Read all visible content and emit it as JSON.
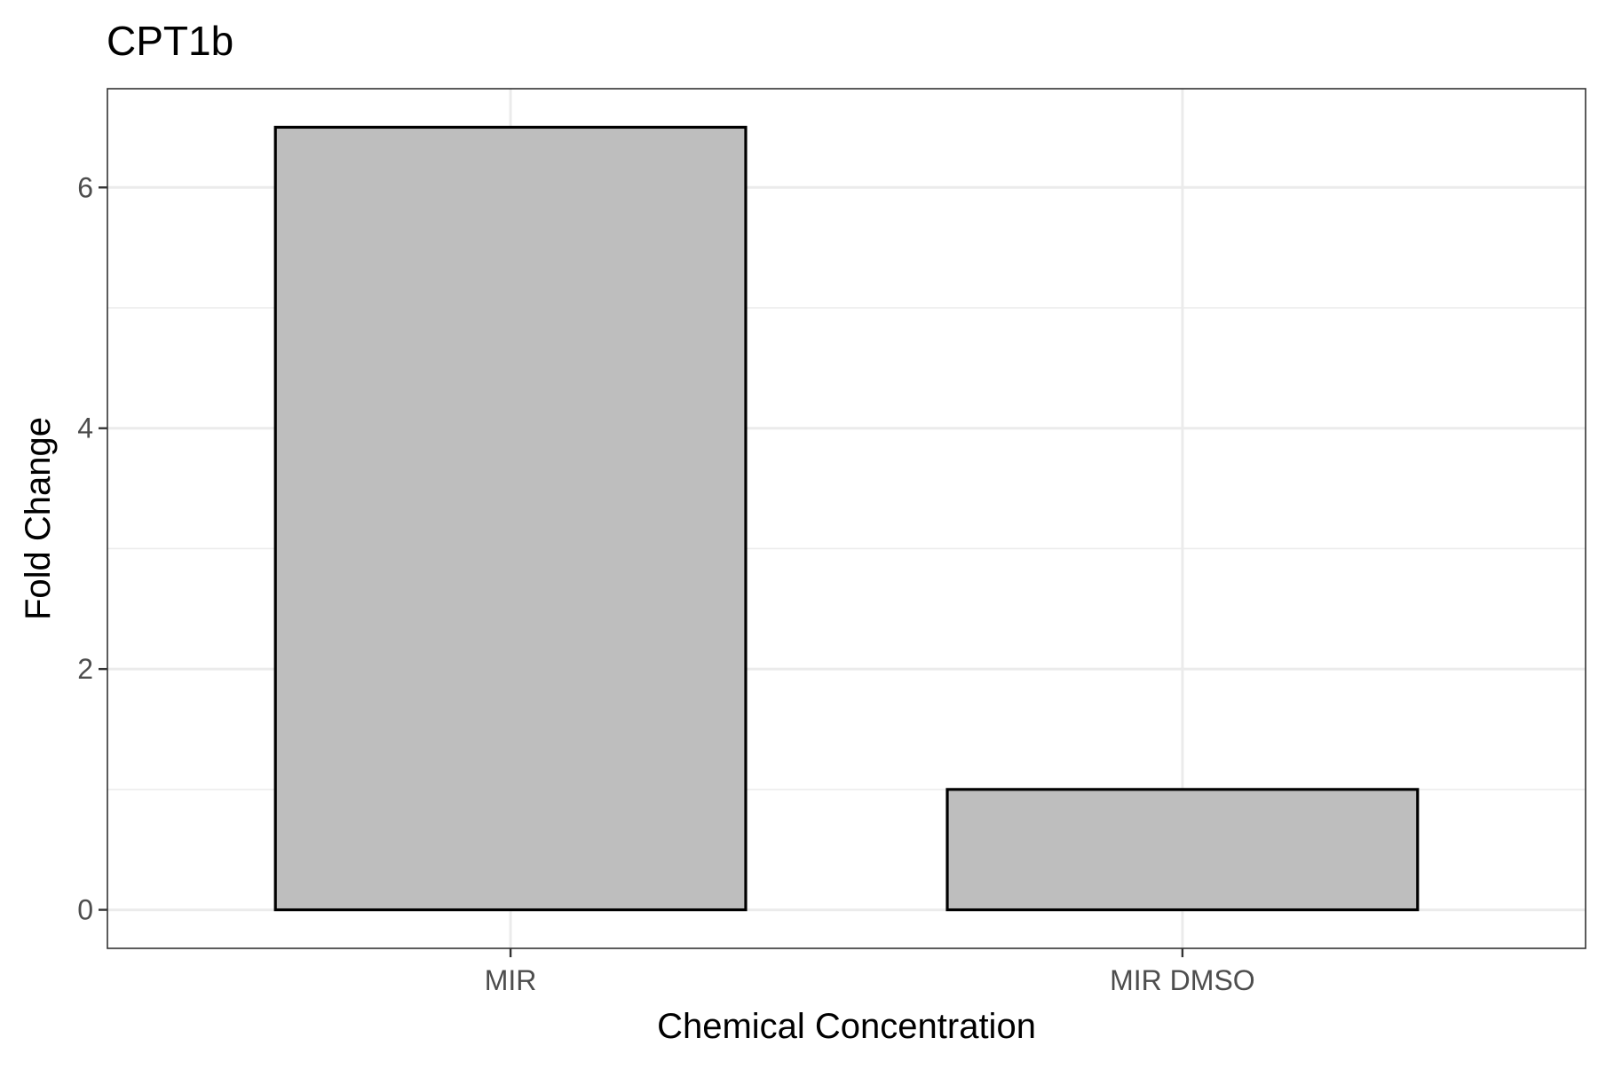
{
  "chart_data": {
    "type": "bar",
    "title": "CPT1b",
    "xlabel": "Chemical Concentration",
    "ylabel": "Fold Change",
    "categories": [
      "MIR",
      "MIR DMSO"
    ],
    "values": [
      6.5,
      1.0
    ],
    "ylim": [
      -0.32,
      6.82
    ],
    "yticks": [
      0,
      2,
      4,
      6
    ],
    "grid": true,
    "bar_fill": "#bebebe",
    "bar_stroke": "#000000",
    "grid_color": "#ebebeb",
    "panel_border": "#333333"
  }
}
